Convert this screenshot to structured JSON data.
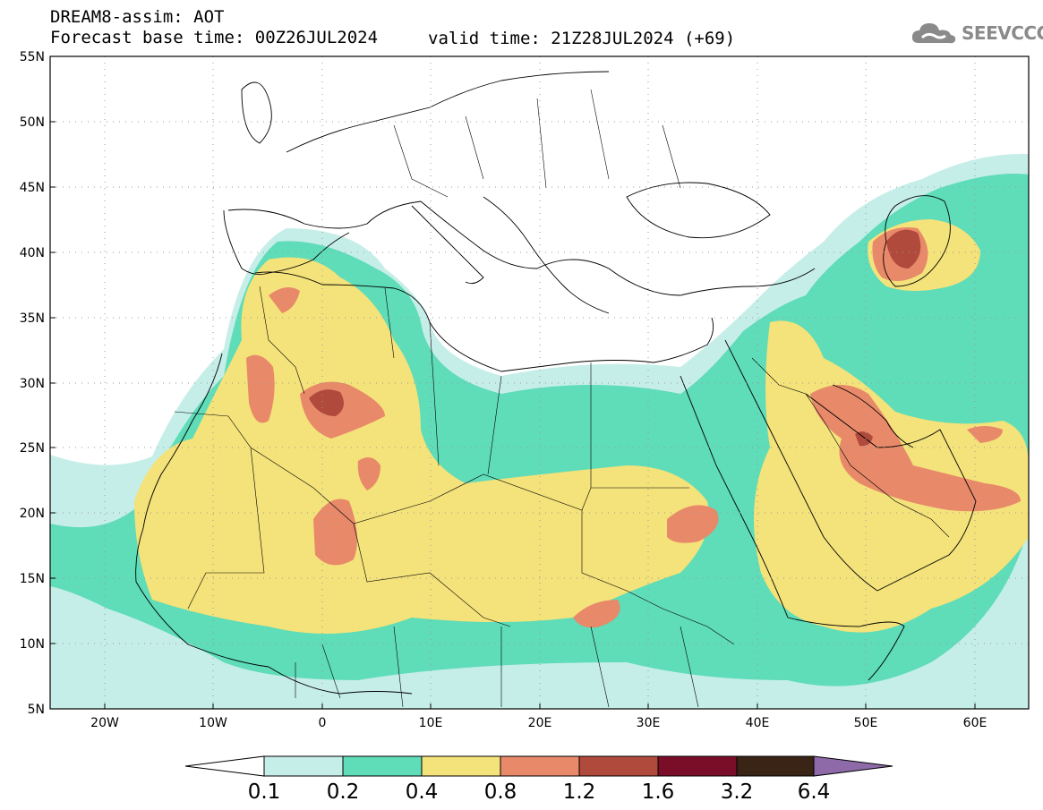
{
  "header": {
    "title_line1": "DREAM8-assim: AOT",
    "forecast_base": "Forecast base time: 00Z26JUL2024",
    "valid_time": "valid time: 21Z28JUL2024 (+69)",
    "logo_text": "SEEVCCC",
    "logo_icon": "cloud-icon"
  },
  "axes": {
    "lat_labels": [
      "55N",
      "50N",
      "45N",
      "40N",
      "35N",
      "30N",
      "25N",
      "20N",
      "15N",
      "10N",
      "5N"
    ],
    "lon_labels": [
      "20W",
      "10W",
      "0",
      "10E",
      "20E",
      "30E",
      "40E",
      "50E",
      "60E"
    ],
    "lat_range": [
      5,
      55
    ],
    "lon_range": [
      -25,
      65
    ],
    "grid": "dotted"
  },
  "colorbar": {
    "labels": [
      "0.1",
      "0.2",
      "0.4",
      "0.8",
      "1.2",
      "1.6",
      "3.2",
      "6.4"
    ],
    "colors": [
      "#ffffff",
      "#c6eee8",
      "#5fdcb8",
      "#f4e27a",
      "#e8896a",
      "#b04a3c",
      "#7a0e28",
      "#3a2416",
      "#8e6aa8"
    ]
  }
}
